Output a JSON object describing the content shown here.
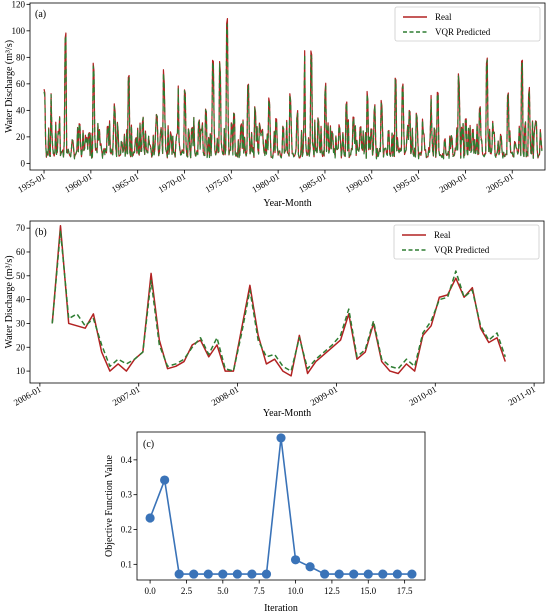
{
  "chart_data": [
    {
      "type": "line",
      "panel_label": "(a)",
      "xlabel": "Year-Month",
      "ylabel": "Water Discharge (m³/s)",
      "xlim": [
        1953.5,
        2008.5
      ],
      "ylim": [
        -5,
        121
      ],
      "xticks": [
        1955,
        1960,
        1965,
        1970,
        1975,
        1980,
        1985,
        1990,
        1995,
        2000,
        2005
      ],
      "xtick_labels": [
        "1955-01",
        "1960-01",
        "1965-01",
        "1970-01",
        "1975-01",
        "1980-01",
        "1985-01",
        "1990-01",
        "1995-01",
        "2000-01",
        "2005-01"
      ],
      "yticks": [
        0,
        20,
        40,
        60,
        80,
        100,
        120
      ],
      "legend_position": "top-right",
      "series": [
        {
          "name": "Real",
          "color": "#b22222",
          "style": "solid",
          "start_year": 1955,
          "peaks": [
            60,
            25,
            99,
            18,
            30,
            20,
            82,
            15,
            28,
            45,
            18,
            75,
            20,
            35,
            15,
            40,
            72,
            25,
            60,
            28,
            35,
            45,
            90,
            78,
            117,
            42,
            30,
            62,
            45,
            28,
            52,
            35,
            30,
            55,
            40,
            92,
            35,
            62,
            25,
            30,
            50,
            35,
            28,
            55,
            45,
            50,
            28,
            72,
            60,
            42,
            38,
            25,
            55,
            20,
            22,
            70,
            35,
            28,
            45,
            86,
            25,
            22,
            55,
            18,
            78,
            60,
            35
          ]
        },
        {
          "name": "VQR Predicted",
          "color": "#2e7d32",
          "style": "dashed"
        }
      ]
    },
    {
      "type": "line",
      "panel_label": "(b)",
      "xlabel": "Year-Month",
      "ylabel": "Water Discharge (m³/s)",
      "xlim": [
        2005.9,
        2011.1
      ],
      "ylim": [
        5,
        73
      ],
      "xticks": [
        2006,
        2007,
        2008,
        2009,
        2010,
        2011
      ],
      "xtick_labels": [
        "2006-01",
        "2007-01",
        "2008-01",
        "2009-01",
        "2010-01",
        "2011-01"
      ],
      "yticks": [
        10,
        20,
        30,
        40,
        50,
        60,
        70
      ],
      "legend_position": "top-right",
      "x_start": 2006.125,
      "x_step": 0.08333,
      "series": [
        {
          "name": "Real",
          "color": "#b22222",
          "style": "solid",
          "values": [
            30,
            71,
            30,
            29,
            28,
            34,
            18,
            10,
            13,
            10,
            15,
            18,
            51,
            23,
            11,
            12,
            14,
            21,
            23,
            16,
            21,
            10,
            10,
            28,
            46,
            25,
            13,
            15,
            10,
            8,
            25,
            9,
            14,
            17,
            20,
            23,
            34,
            15,
            18,
            30,
            14,
            10,
            9,
            13,
            10,
            25,
            29,
            41,
            42,
            49,
            41,
            45,
            28,
            22,
            24,
            14
          ]
        },
        {
          "name": "VQR Predicted",
          "color": "#2e7d32",
          "style": "dashed",
          "values": [
            30,
            69,
            32,
            34,
            29,
            32,
            21,
            12,
            15,
            13,
            15,
            18,
            48,
            21,
            12,
            13,
            15,
            20,
            24,
            17,
            24,
            11,
            10,
            26,
            44,
            23,
            16,
            17,
            12,
            10,
            24,
            11,
            15,
            18,
            21,
            25,
            36,
            16,
            19,
            31,
            15,
            12,
            11,
            15,
            12,
            26,
            31,
            40,
            41,
            52,
            41,
            44,
            29,
            23,
            26,
            16
          ]
        }
      ]
    },
    {
      "type": "line",
      "panel_label": "(c)",
      "xlabel": "Iteration",
      "ylabel": "Objective Function Value",
      "xlim": [
        -0.9,
        18.9
      ],
      "ylim": [
        0.055,
        0.48
      ],
      "xticks": [
        0,
        2.5,
        5,
        7.5,
        10,
        12.5,
        15,
        17.5
      ],
      "xtick_labels": [
        "0.0",
        "2.5",
        "5.0",
        "7.5",
        "10.0",
        "12.5",
        "15.0",
        "17.5"
      ],
      "yticks": [
        0.1,
        0.2,
        0.3,
        0.4
      ],
      "ytick_labels": [
        "0.1",
        "0.2",
        "0.3",
        "0.4"
      ],
      "color": "#3a73b8",
      "x": [
        0,
        1,
        2,
        3,
        4,
        5,
        6,
        7,
        8,
        9,
        10,
        11,
        12,
        13,
        14,
        15,
        16,
        17,
        18
      ],
      "y": [
        0.233,
        0.342,
        0.072,
        0.072,
        0.072,
        0.072,
        0.072,
        0.072,
        0.072,
        0.463,
        0.113,
        0.093,
        0.072,
        0.072,
        0.072,
        0.072,
        0.072,
        0.072,
        0.072
      ]
    }
  ]
}
